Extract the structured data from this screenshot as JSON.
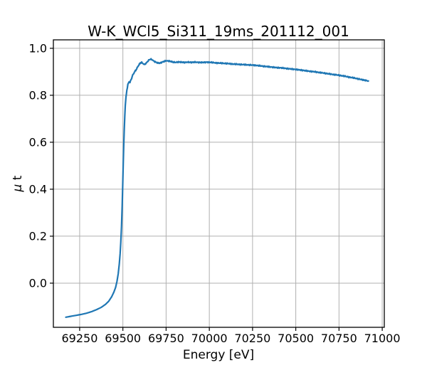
{
  "figure": {
    "title": "W-K_WCl5_Si311_19ms_201112_001",
    "xlabel": "Energy [eV]",
    "ylabel": "μ t"
  },
  "chart_data": {
    "type": "line",
    "title": "W-K_WCl5_Si311_19ms_201112_001",
    "xlabel": "Energy [eV]",
    "ylabel": "μ t",
    "xlim": [
      69098,
      71012
    ],
    "ylim": [
      -0.188,
      1.036
    ],
    "x_ticks": [
      69250,
      69500,
      69750,
      70000,
      70250,
      70500,
      70750,
      71000
    ],
    "y_ticks": [
      0.0,
      0.2,
      0.4,
      0.6,
      0.8,
      1.0
    ],
    "y_tick_labels": [
      "0.0",
      "0.2",
      "0.4",
      "0.6",
      "0.8",
      "1.0"
    ],
    "grid": true,
    "legend": "none",
    "colors": {
      "line": "#1f77b4",
      "grid": "#b0b0b0",
      "spine": "#000000",
      "text": "#000000",
      "background": "#ffffff"
    },
    "noise_amplitude": 0.0028,
    "series": [
      {
        "points": [
          [
            69170,
            -0.145
          ],
          [
            69200,
            -0.141
          ],
          [
            69230,
            -0.137
          ],
          [
            69260,
            -0.133
          ],
          [
            69290,
            -0.128
          ],
          [
            69320,
            -0.121
          ],
          [
            69350,
            -0.112
          ],
          [
            69375,
            -0.103
          ],
          [
            69400,
            -0.09
          ],
          [
            69418,
            -0.077
          ],
          [
            69435,
            -0.058
          ],
          [
            69448,
            -0.038
          ],
          [
            69458,
            -0.018
          ],
          [
            69466,
            0.008
          ],
          [
            69473,
            0.04
          ],
          [
            69479,
            0.08
          ],
          [
            69484,
            0.125
          ],
          [
            69488,
            0.175
          ],
          [
            69492,
            0.24
          ],
          [
            69496,
            0.33
          ],
          [
            69499,
            0.415
          ],
          [
            69502,
            0.505
          ],
          [
            69505,
            0.585
          ],
          [
            69508,
            0.655
          ],
          [
            69511,
            0.712
          ],
          [
            69514,
            0.755
          ],
          [
            69518,
            0.792
          ],
          [
            69523,
            0.822
          ],
          [
            69529,
            0.845
          ],
          [
            69535,
            0.858
          ],
          [
            69541,
            0.855
          ],
          [
            69547,
            0.866
          ],
          [
            69554,
            0.88
          ],
          [
            69561,
            0.891
          ],
          [
            69569,
            0.901
          ],
          [
            69577,
            0.909
          ],
          [
            69585,
            0.92
          ],
          [
            69593,
            0.93
          ],
          [
            69601,
            0.937
          ],
          [
            69609,
            0.941
          ],
          [
            69616,
            0.935
          ],
          [
            69625,
            0.931
          ],
          [
            69634,
            0.936
          ],
          [
            69643,
            0.944
          ],
          [
            69652,
            0.951
          ],
          [
            69660,
            0.954
          ],
          [
            69669,
            0.951
          ],
          [
            69679,
            0.946
          ],
          [
            69690,
            0.941
          ],
          [
            69702,
            0.938
          ],
          [
            69714,
            0.937
          ],
          [
            69726,
            0.941
          ],
          [
            69738,
            0.944
          ],
          [
            69750,
            0.947
          ],
          [
            69763,
            0.946
          ],
          [
            69777,
            0.944
          ],
          [
            69791,
            0.941
          ],
          [
            69806,
            0.94
          ],
          [
            69822,
            0.942
          ],
          [
            69839,
            0.941
          ],
          [
            69857,
            0.94
          ],
          [
            69876,
            0.941
          ],
          [
            69896,
            0.94
          ],
          [
            69917,
            0.941
          ],
          [
            69939,
            0.94
          ],
          [
            69962,
            0.94
          ],
          [
            69986,
            0.941
          ],
          [
            70010,
            0.94
          ],
          [
            70035,
            0.938
          ],
          [
            70060,
            0.937
          ],
          [
            70085,
            0.936
          ],
          [
            70110,
            0.935
          ],
          [
            70135,
            0.933
          ],
          [
            70160,
            0.932
          ],
          [
            70185,
            0.931
          ],
          [
            70210,
            0.93
          ],
          [
            70235,
            0.929
          ],
          [
            70260,
            0.928
          ],
          [
            70285,
            0.926
          ],
          [
            70310,
            0.924
          ],
          [
            70335,
            0.922
          ],
          [
            70360,
            0.92
          ],
          [
            70385,
            0.918
          ],
          [
            70410,
            0.917
          ],
          [
            70435,
            0.915
          ],
          [
            70460,
            0.913
          ],
          [
            70485,
            0.911
          ],
          [
            70510,
            0.909
          ],
          [
            70535,
            0.907
          ],
          [
            70560,
            0.904
          ],
          [
            70585,
            0.902
          ],
          [
            70610,
            0.9
          ],
          [
            70635,
            0.897
          ],
          [
            70660,
            0.895
          ],
          [
            70685,
            0.892
          ],
          [
            70710,
            0.889
          ],
          [
            70735,
            0.887
          ],
          [
            70760,
            0.884
          ],
          [
            70785,
            0.881
          ],
          [
            70810,
            0.877
          ],
          [
            70835,
            0.874
          ],
          [
            70860,
            0.87
          ],
          [
            70885,
            0.866
          ],
          [
            70905,
            0.863
          ],
          [
            70920,
            0.861
          ]
        ]
      }
    ]
  }
}
